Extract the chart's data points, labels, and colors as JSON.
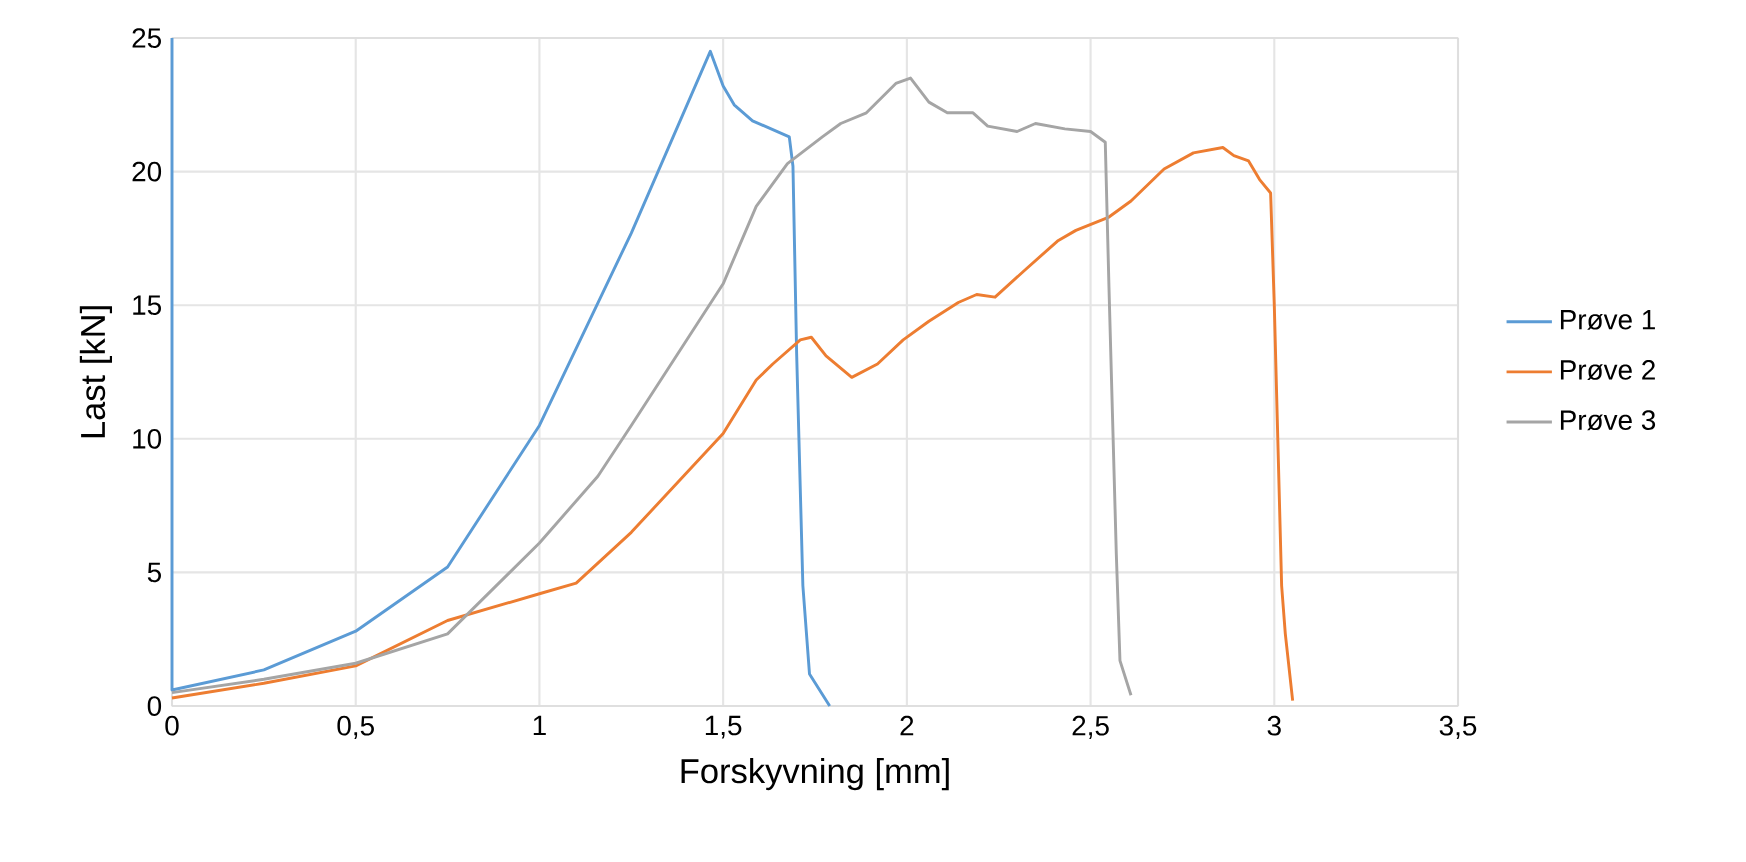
{
  "chart_data": {
    "type": "line",
    "xlabel": "Forskyvning [mm]",
    "ylabel": "Last [kN]",
    "xlim": [
      0,
      3.5
    ],
    "ylim": [
      0,
      25
    ],
    "xticks": [
      0,
      {
        "value": 0.5,
        "label": "0,5"
      },
      1,
      {
        "value": 1.5,
        "label": "1,5"
      },
      2,
      {
        "value": 2.5,
        "label": "2,5"
      },
      3,
      {
        "value": 3.5,
        "label": "3,5"
      }
    ],
    "yticks": [
      0,
      5,
      10,
      15,
      20,
      25
    ],
    "grid": true,
    "legend": "right",
    "marker": "none",
    "line_style": "solid",
    "series": [
      {
        "name": "Prøve 1",
        "color": "#5b9bd5",
        "x": [
          0,
          0,
          0.25,
          0.5,
          0.75,
          1,
          1.25,
          1.465,
          1.5,
          1.53,
          1.58,
          1.68,
          1.69,
          1.7,
          1.717,
          1.735,
          1.79
        ],
        "values": [
          25,
          0.6,
          1.35,
          2.8,
          5.2,
          10.5,
          17.7,
          24.5,
          23.2,
          22.5,
          21.9,
          21.3,
          20.2,
          13.2,
          4.5,
          1.2,
          0
        ]
      },
      {
        "name": "Prøve 2",
        "color": "#ed7d31",
        "x": [
          0,
          0.25,
          0.5,
          0.75,
          1,
          1.1,
          1.25,
          1.5,
          1.59,
          1.635,
          1.71,
          1.74,
          1.78,
          1.85,
          1.92,
          1.99,
          2.06,
          2.14,
          2.19,
          2.24,
          2.32,
          2.41,
          2.46,
          2.55,
          2.61,
          2.7,
          2.78,
          2.86,
          2.89,
          2.93,
          2.96,
          2.99,
          3.0,
          3.02,
          3.03,
          3.05
        ],
        "values": [
          0.3,
          0.85,
          1.5,
          3.2,
          4.2,
          4.6,
          6.5,
          10.2,
          12.2,
          12.8,
          13.7,
          13.8,
          13.1,
          12.3,
          12.8,
          13.7,
          14.4,
          15.1,
          15.4,
          15.3,
          16.3,
          17.4,
          17.8,
          18.3,
          18.9,
          20.1,
          20.7,
          20.9,
          20.6,
          20.4,
          19.7,
          19.2,
          15,
          4.5,
          2.7,
          0.2
        ]
      },
      {
        "name": "Prøve 3",
        "color": "#a5a5a5",
        "x": [
          0,
          0.25,
          0.5,
          0.75,
          1,
          1.159,
          1.25,
          1.5,
          1.59,
          1.675,
          1.77,
          1.82,
          1.89,
          1.97,
          2.01,
          2.06,
          2.11,
          2.18,
          2.22,
          2.3,
          2.35,
          2.43,
          2.5,
          2.54,
          2.55,
          2.57,
          2.58,
          2.61
        ],
        "values": [
          0.5,
          1.0,
          1.6,
          2.7,
          6.1,
          8.6,
          10.5,
          15.8,
          18.7,
          20.3,
          21.3,
          21.8,
          22.2,
          23.3,
          23.5,
          22.6,
          22.2,
          22.2,
          21.7,
          21.5,
          21.8,
          21.6,
          21.5,
          21.1,
          15.7,
          5.7,
          1.7,
          0.4
        ]
      }
    ]
  }
}
